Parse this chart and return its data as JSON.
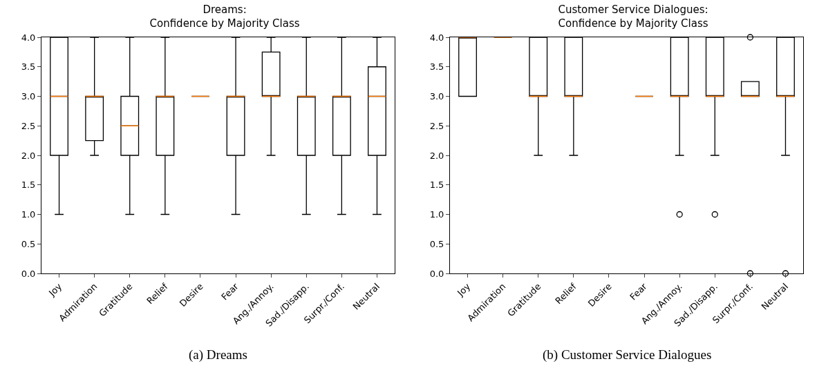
{
  "chart_data": [
    {
      "type": "box",
      "title": "Dreams:\nConfidence by Majority Class",
      "categories": [
        "Joy",
        "Admiration",
        "Gratitude",
        "Relief",
        "Desire",
        "Fear",
        "Ang./Annoy.",
        "Sad./Disapp.",
        "Surpr./Conf.",
        "Neutral"
      ],
      "ylim": [
        0,
        4
      ],
      "yticks": [
        {
          "value": 0,
          "label": "0.0"
        },
        {
          "value": 0.5,
          "label": "0.5"
        },
        {
          "value": 1,
          "label": "1.0"
        },
        {
          "value": 1.5,
          "label": "1.5"
        },
        {
          "value": 2,
          "label": "2.0"
        },
        {
          "value": 2.5,
          "label": "2.5"
        },
        {
          "value": 3,
          "label": "3.0"
        },
        {
          "value": 3.5,
          "label": "3.5"
        },
        {
          "value": 4,
          "label": "4.0"
        }
      ],
      "grid": false,
      "annotations": [
        "(a) Dreams"
      ],
      "series": [
        {
          "color": "#000000",
          "boxes": [
            {
              "low": 1,
              "q1": 2,
              "median": 3,
              "q3": 4,
              "high": 4
            },
            {
              "low": 2,
              "q1": 2.25,
              "median": 3,
              "q3": 3,
              "high": 4
            },
            {
              "low": 1,
              "q1": 2,
              "median": 2.5,
              "q3": 3,
              "high": 4
            },
            {
              "low": 1,
              "q1": 2,
              "median": 3,
              "q3": 3,
              "high": 4
            },
            {
              "low": 3,
              "q1": 3,
              "median": 3,
              "q3": 3,
              "high": 3
            },
            {
              "low": 1,
              "q1": 2,
              "median": 3,
              "q3": 3,
              "high": 4
            },
            {
              "low": 2,
              "q1": 3,
              "median": 3,
              "q3": 3.75,
              "high": 4
            },
            {
              "low": 1,
              "q1": 2,
              "median": 3,
              "q3": 3,
              "high": 4
            },
            {
              "low": 1,
              "q1": 2,
              "median": 3,
              "q3": 3,
              "high": 4
            },
            {
              "low": 1,
              "q1": 2,
              "median": 3,
              "q3": 3.5,
              "high": 4
            }
          ]
        }
      ]
    },
    {
      "type": "box",
      "title": "Customer Service Dialogues:\nConfidence by Majority Class",
      "categories": [
        "Joy",
        "Admiration",
        "Gratitude",
        "Relief",
        "Desire",
        "Fear",
        "Ang./Annoy.",
        "Sad./Disapp.",
        "Surpr./Conf.",
        "Neutral"
      ],
      "ylim": [
        0,
        4
      ],
      "yticks": [
        {
          "value": 0,
          "label": "0.0"
        },
        {
          "value": 0.5,
          "label": "0.5"
        },
        {
          "value": 1,
          "label": "1.0"
        },
        {
          "value": 1.5,
          "label": "1.5"
        },
        {
          "value": 2,
          "label": "2.0"
        },
        {
          "value": 2.5,
          "label": "2.5"
        },
        {
          "value": 3,
          "label": "3.0"
        },
        {
          "value": 3.5,
          "label": "3.5"
        },
        {
          "value": 4,
          "label": "4.0"
        }
      ],
      "grid": false,
      "annotations": [
        "(b) Customer Service Dialogues"
      ],
      "series": [
        {
          "color": "#000000",
          "boxes": [
            {
              "low": 3,
              "q1": 3,
              "median": 4,
              "q3": 4,
              "high": 4
            },
            {
              "low": 4,
              "q1": 4,
              "median": 4,
              "q3": 4,
              "high": 4
            },
            {
              "low": 2,
              "q1": 3,
              "median": 3,
              "q3": 4,
              "high": 4
            },
            {
              "low": 2,
              "q1": 3,
              "median": 3,
              "q3": 4,
              "high": 4
            },
            null,
            {
              "low": 3,
              "q1": 3,
              "median": 3,
              "q3": 3,
              "high": 3
            },
            {
              "low": 2,
              "q1": 3,
              "median": 3,
              "q3": 4,
              "high": 4,
              "outliers": [
                1
              ]
            },
            {
              "low": 2,
              "q1": 3,
              "median": 3,
              "q3": 4,
              "high": 4,
              "outliers": [
                1
              ]
            },
            {
              "low": 3,
              "q1": 3,
              "median": 3,
              "q3": 3.25,
              "high": 3.25,
              "outliers": [
                4,
                0
              ]
            },
            {
              "low": 2,
              "q1": 3,
              "median": 3,
              "q3": 4,
              "high": 4,
              "outliers": [
                0
              ]
            }
          ]
        }
      ]
    }
  ]
}
